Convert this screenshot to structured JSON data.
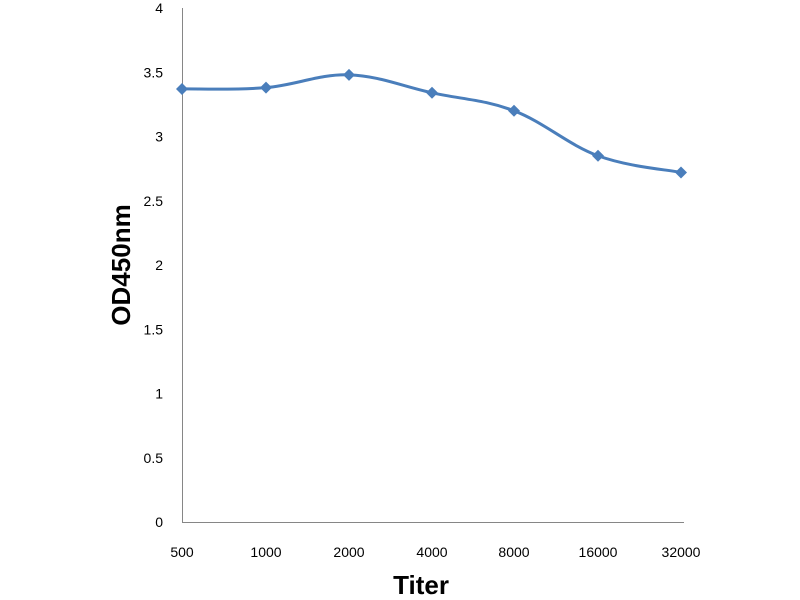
{
  "chart_data": {
    "type": "line",
    "title": "",
    "xlabel": "Titer",
    "ylabel": "OD450nm",
    "categories": [
      "500",
      "1000",
      "2000",
      "4000",
      "8000",
      "16000",
      "32000"
    ],
    "series": [
      {
        "values": [
          3.37,
          3.38,
          3.48,
          3.34,
          3.2,
          2.85,
          2.72
        ],
        "color": "#4a7ebb",
        "marker": "diamond"
      }
    ],
    "ylim": [
      0,
      4
    ],
    "yticks": [
      "0",
      "0.5",
      "1",
      "1.5",
      "2",
      "2.5",
      "3",
      "3.5",
      "4"
    ],
    "grid": false,
    "legend": "none"
  }
}
